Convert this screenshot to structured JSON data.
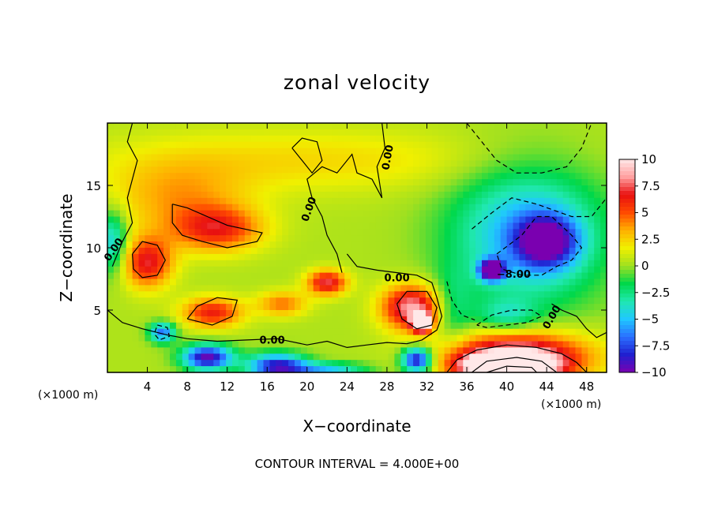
{
  "chart_data": {
    "type": "heatmap",
    "title": "zonal velocity",
    "xlabel": "X−coordinate",
    "ylabel": "Z−coordinate",
    "x_unit": "(×1000 m)",
    "y_unit": "(×1000 m)",
    "xlim": [
      0,
      50
    ],
    "ylim": [
      0,
      20
    ],
    "x_ticks": [
      "4",
      "8",
      "12",
      "16",
      "20",
      "24",
      "28",
      "32",
      "36",
      "40",
      "44",
      "48"
    ],
    "x_tick_values": [
      4,
      8,
      12,
      16,
      20,
      24,
      28,
      32,
      36,
      40,
      44,
      48
    ],
    "y_ticks": [
      "5",
      "10",
      "15"
    ],
    "y_tick_values": [
      5,
      10,
      15
    ],
    "colorbar": {
      "range": [
        -10,
        10
      ],
      "tick_labels": [
        "10",
        "7.5",
        "5",
        "2.5",
        "0",
        "−2.5",
        "−5",
        "−7.5",
        "−10"
      ],
      "tick_values": [
        10,
        7.5,
        5,
        2.5,
        0,
        -2.5,
        -5,
        -7.5,
        -10
      ],
      "colors": [
        "#7a00b0",
        "#2020d0",
        "#2a70ff",
        "#20c8ff",
        "#20e8b0",
        "#00d84a",
        "#a0e020",
        "#f0f000",
        "#ffb000",
        "#ff4a00",
        "#e81010",
        "#ffa0a0",
        "#ffe8e8"
      ]
    },
    "contour_labels": [
      {
        "text": "0.00",
        "x": 0.9,
        "y": 9.7,
        "rotate": -55
      },
      {
        "text": "0.00",
        "x": 16.5,
        "y": 2.3,
        "rotate": 0
      },
      {
        "text": "0.00",
        "x": 20.5,
        "y": 13.0,
        "rotate": -70
      },
      {
        "text": "0.00",
        "x": 28.4,
        "y": 17.2,
        "rotate": -80
      },
      {
        "text": "0.00",
        "x": 29.0,
        "y": 7.3,
        "rotate": 0
      },
      {
        "text": "0.00",
        "x": 44.8,
        "y": 4.3,
        "rotate": -60
      },
      {
        "text": "−8.00",
        "x": 40.7,
        "y": 7.6,
        "rotate": 0
      }
    ],
    "blobs": [
      {
        "x": 20,
        "y": 17,
        "rx": 20,
        "ry": 2.5,
        "v": 2
      },
      {
        "x": 7,
        "y": 14,
        "rx": 7,
        "ry": 3,
        "v": 3
      },
      {
        "x": 11,
        "y": 11.5,
        "rx": 4.5,
        "ry": 1.8,
        "v": 5.5
      },
      {
        "x": 4,
        "y": 8.8,
        "rx": 2.5,
        "ry": 2,
        "v": 6.5
      },
      {
        "x": 10.5,
        "y": 4.8,
        "rx": 3,
        "ry": 1.2,
        "v": 6
      },
      {
        "x": 17.5,
        "y": 5.5,
        "rx": 2.5,
        "ry": 1.0,
        "v": 4
      },
      {
        "x": 22,
        "y": 7.2,
        "rx": 2,
        "ry": 1.0,
        "v": 7
      },
      {
        "x": 30.5,
        "y": 5.2,
        "rx": 3,
        "ry": 1.8,
        "v": 8.5
      },
      {
        "x": 31.5,
        "y": 4.0,
        "rx": 0.9,
        "ry": 0.7,
        "v": 14
      },
      {
        "x": 41,
        "y": 1.2,
        "rx": 7,
        "ry": 2.0,
        "v": 10
      },
      {
        "x": 40,
        "y": 0.5,
        "rx": 4,
        "ry": 0.9,
        "v": 14
      },
      {
        "x": 42,
        "y": 11,
        "rx": 7.5,
        "ry": 5.5,
        "v": -6
      },
      {
        "x": 44,
        "y": 10.5,
        "rx": 3,
        "ry": 2,
        "v": -8
      },
      {
        "x": 38.5,
        "y": 8.2,
        "rx": 1.2,
        "ry": 0.8,
        "v": -12
      },
      {
        "x": 0.5,
        "y": 10.5,
        "rx": 1.5,
        "ry": 2.5,
        "v": -5
      },
      {
        "x": 5.5,
        "y": 3.2,
        "rx": 1.3,
        "ry": 0.8,
        "v": -7
      },
      {
        "x": 10,
        "y": 1.2,
        "rx": 2.5,
        "ry": 1.0,
        "v": -10
      },
      {
        "x": 17,
        "y": 0.5,
        "rx": 3,
        "ry": 1.0,
        "v": -9
      },
      {
        "x": 31,
        "y": 1.0,
        "rx": 1.5,
        "ry": 1.0,
        "v": -10
      },
      {
        "x": 22,
        "y": 0.3,
        "rx": 4,
        "ry": 0.5,
        "v": -5
      },
      {
        "x": 34.5,
        "y": 5,
        "rx": 2,
        "ry": 3,
        "v": -2.5
      },
      {
        "x": 40,
        "y": 4.5,
        "rx": 3,
        "ry": 1.3,
        "v": -3
      }
    ],
    "contours": [
      {
        "style": "solid",
        "points": [
          [
            2.5,
            9.5
          ],
          [
            3.5,
            10.5
          ],
          [
            5,
            10.2
          ],
          [
            5.8,
            9
          ],
          [
            5,
            7.8
          ],
          [
            3.5,
            7.6
          ],
          [
            2.6,
            8.3
          ],
          [
            2.5,
            9.5
          ]
        ]
      },
      {
        "style": "solid",
        "points": [
          [
            6.5,
            13.5
          ],
          [
            8,
            13.2
          ],
          [
            10,
            12.5
          ],
          [
            12,
            11.8
          ],
          [
            15.5,
            11.2
          ],
          [
            15,
            10.5
          ],
          [
            12,
            10
          ],
          [
            9.5,
            10.5
          ],
          [
            7.5,
            11
          ],
          [
            6.5,
            12
          ],
          [
            6.5,
            13.5
          ]
        ]
      },
      {
        "style": "solid",
        "points": [
          [
            8,
            4.3
          ],
          [
            9,
            5.3
          ],
          [
            11,
            6
          ],
          [
            13,
            5.8
          ],
          [
            12.5,
            4.5
          ],
          [
            10.5,
            3.8
          ],
          [
            8,
            4.3
          ]
        ]
      },
      {
        "style": "solid",
        "points": [
          [
            29,
            5.5
          ],
          [
            30,
            6.5
          ],
          [
            32,
            6.5
          ],
          [
            33,
            5.2
          ],
          [
            32.5,
            3.8
          ],
          [
            31,
            3.5
          ],
          [
            29.5,
            4.3
          ],
          [
            29,
            5.5
          ]
        ]
      },
      {
        "style": "solid",
        "points": [
          [
            0.5,
            8.5
          ],
          [
            1.5,
            10.5
          ],
          [
            2.5,
            12
          ],
          [
            2,
            14
          ],
          [
            2.5,
            15.5
          ],
          [
            3,
            17
          ],
          [
            2,
            18.5
          ],
          [
            2.5,
            20
          ]
        ]
      },
      {
        "style": "solid",
        "points": [
          [
            0,
            5
          ],
          [
            1.5,
            4
          ],
          [
            3.5,
            3.5
          ],
          [
            6,
            3
          ],
          [
            8,
            2.7
          ],
          [
            11,
            2.5
          ],
          [
            14,
            2.6
          ],
          [
            17,
            2.7
          ],
          [
            20,
            2.2
          ],
          [
            22,
            2.5
          ],
          [
            24,
            2.0
          ],
          [
            26,
            2.2
          ],
          [
            28,
            2.4
          ],
          [
            30,
            2.3
          ],
          [
            31.5,
            2.6
          ],
          [
            33,
            3.4
          ],
          [
            33.5,
            4.5
          ],
          [
            33,
            6
          ],
          [
            32.5,
            7.2
          ],
          [
            31,
            7.8
          ],
          [
            29,
            8
          ],
          [
            27,
            8.2
          ],
          [
            25,
            8.5
          ],
          [
            24,
            9.5
          ]
        ]
      },
      {
        "style": "solid",
        "points": [
          [
            34,
            0
          ],
          [
            35,
            1
          ],
          [
            37,
            1.8
          ],
          [
            40,
            2.2
          ],
          [
            43,
            2.0
          ],
          [
            45.5,
            1.5
          ],
          [
            47,
            0.8
          ],
          [
            48,
            0
          ]
        ]
      },
      {
        "style": "solid",
        "points": [
          [
            36.5,
            0
          ],
          [
            38,
            0.9
          ],
          [
            41,
            1.2
          ],
          [
            43.5,
            0.9
          ],
          [
            45,
            0
          ]
        ]
      },
      {
        "style": "solid",
        "points": [
          [
            38,
            0
          ],
          [
            40,
            0.5
          ],
          [
            42.5,
            0.4
          ],
          [
            43,
            0
          ]
        ]
      },
      {
        "style": "solid",
        "points": [
          [
            23.5,
            8
          ],
          [
            23,
            9.5
          ],
          [
            22,
            11
          ],
          [
            21.5,
            12.5
          ],
          [
            20.5,
            14
          ],
          [
            20,
            15.5
          ],
          [
            21.5,
            16.5
          ],
          [
            23,
            16
          ],
          [
            24.5,
            17.5
          ],
          [
            25,
            16
          ],
          [
            26.5,
            15.5
          ],
          [
            27.5,
            14
          ],
          [
            27,
            16.5
          ],
          [
            27.8,
            18
          ],
          [
            27.5,
            20
          ]
        ]
      },
      {
        "style": "solid",
        "points": [
          [
            18.5,
            18
          ],
          [
            19.5,
            17
          ],
          [
            20.5,
            16
          ],
          [
            21.5,
            17
          ],
          [
            21,
            18.5
          ],
          [
            19.5,
            18.8
          ],
          [
            18.5,
            18
          ]
        ]
      },
      {
        "style": "solid",
        "points": [
          [
            44.5,
            5.5
          ],
          [
            45.5,
            5
          ],
          [
            47,
            4.5
          ],
          [
            48,
            3.5
          ],
          [
            49,
            2.8
          ],
          [
            50,
            3.2
          ]
        ]
      },
      {
        "style": "dashed",
        "points": [
          [
            39,
            9.5
          ],
          [
            41.5,
            11
          ],
          [
            43,
            12.5
          ],
          [
            44.5,
            12.5
          ],
          [
            46.5,
            11
          ],
          [
            47.5,
            10
          ],
          [
            46.5,
            9
          ],
          [
            45,
            8.5
          ],
          [
            43.5,
            7.8
          ],
          [
            41.5,
            7.8
          ],
          [
            39.5,
            8.3
          ],
          [
            39,
            9.5
          ]
        ]
      },
      {
        "style": "dashed",
        "points": [
          [
            36.5,
            11.5
          ],
          [
            38.5,
            12.8
          ],
          [
            40.5,
            14
          ],
          [
            43,
            13.5
          ],
          [
            46.5,
            12.5
          ],
          [
            48.5,
            12.5
          ],
          [
            49.5,
            13.5
          ],
          [
            50,
            14
          ]
        ]
      },
      {
        "style": "dashed",
        "points": [
          [
            37,
            3.8
          ],
          [
            38.5,
            4.6
          ],
          [
            40.5,
            5
          ],
          [
            42.5,
            5
          ],
          [
            43.5,
            4.5
          ],
          [
            42,
            4
          ],
          [
            40,
            3.8
          ],
          [
            38,
            3.6
          ],
          [
            37,
            3.8
          ]
        ]
      },
      {
        "style": "dashed",
        "points": [
          [
            36,
            20
          ],
          [
            37.5,
            18.5
          ],
          [
            39,
            17
          ],
          [
            41,
            16
          ],
          [
            43.5,
            16
          ],
          [
            46,
            16.5
          ],
          [
            47.5,
            18
          ],
          [
            48.5,
            20
          ]
        ]
      },
      {
        "style": "dashed",
        "points": [
          [
            5,
            3.8
          ],
          [
            6,
            3.6
          ],
          [
            6.2,
            2.9
          ],
          [
            5.2,
            2.6
          ],
          [
            4.7,
            3.1
          ],
          [
            5,
            3.8
          ]
        ]
      },
      {
        "style": "dashed",
        "points": [
          [
            34,
            7.3
          ],
          [
            34.5,
            5.8
          ],
          [
            35.5,
            4.6
          ],
          [
            36.8,
            4.2
          ]
        ]
      }
    ]
  },
  "footer": "CONTOUR INTERVAL = 4.000E+00"
}
